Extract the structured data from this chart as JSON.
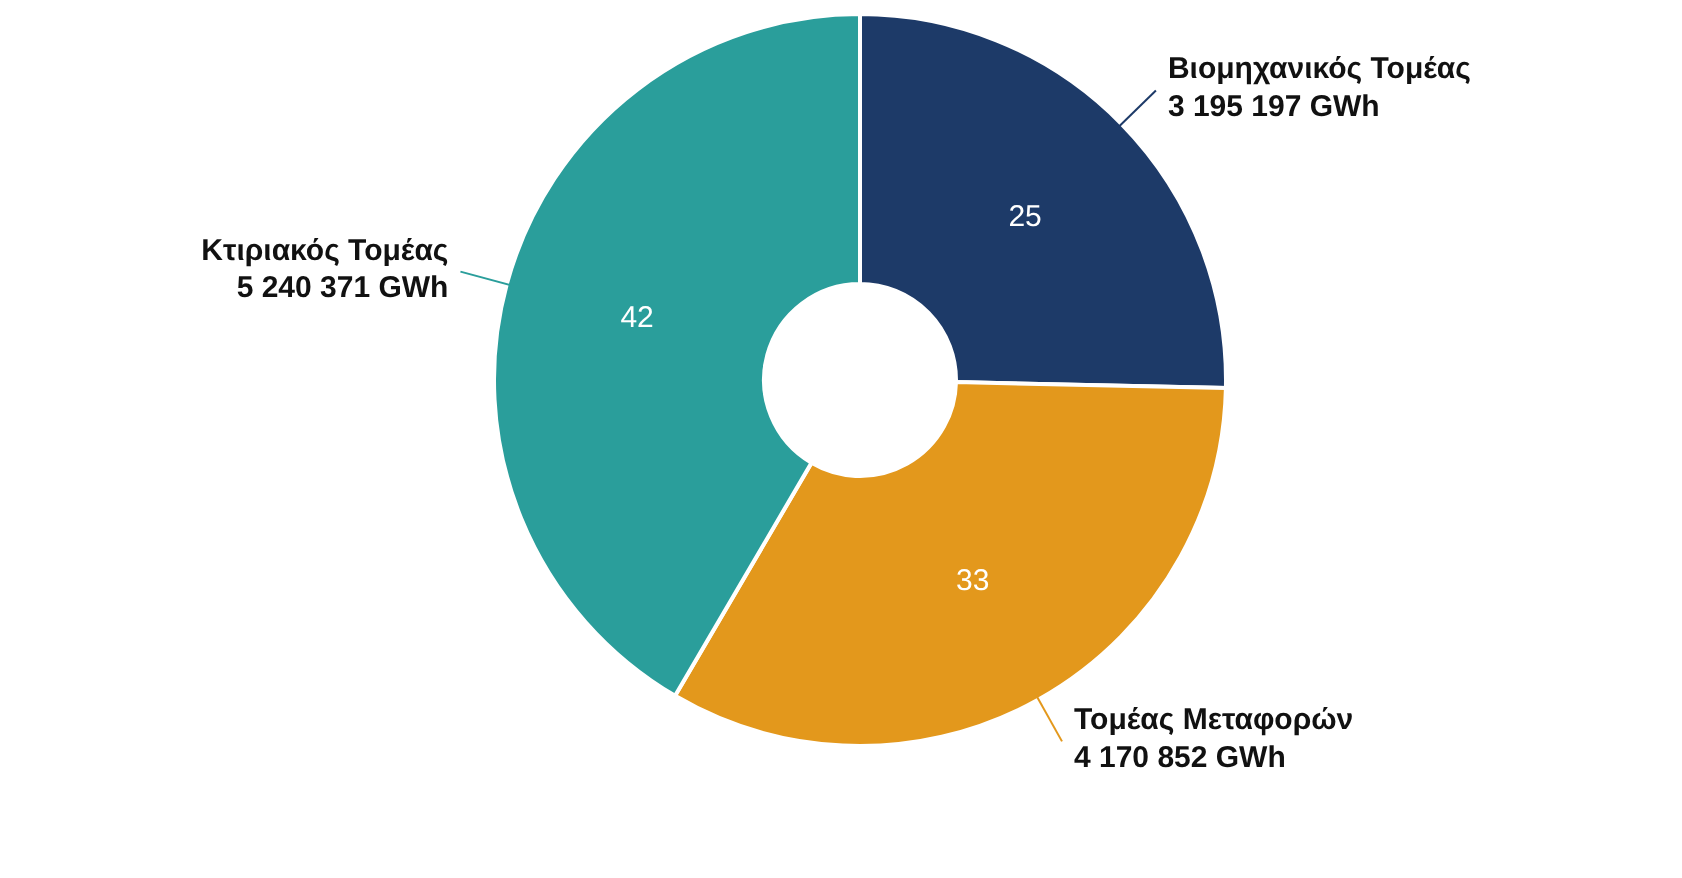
{
  "chart_data": {
    "type": "donut",
    "categories": [
      "Βιομηχανικός Τομέας",
      "Τομέας Μεταφορών",
      "Κτιριακός Τομέας"
    ],
    "values": [
      3195197,
      4170852,
      5240371
    ],
    "value_labels": [
      "3 195 197 GWh",
      "4 170 852 GWh",
      "5 240 371 GWh"
    ],
    "colors": [
      "#1d3a68",
      "#e3981c",
      "#2a9e9b"
    ],
    "annotations": [
      {
        "text": "25",
        "x": "Βιομηχανικός Τομέας"
      },
      {
        "text": "33",
        "x": "Τομέας Μεταφορών"
      },
      {
        "text": "42",
        "x": "Κτιριακός Τομέας"
      }
    ]
  }
}
